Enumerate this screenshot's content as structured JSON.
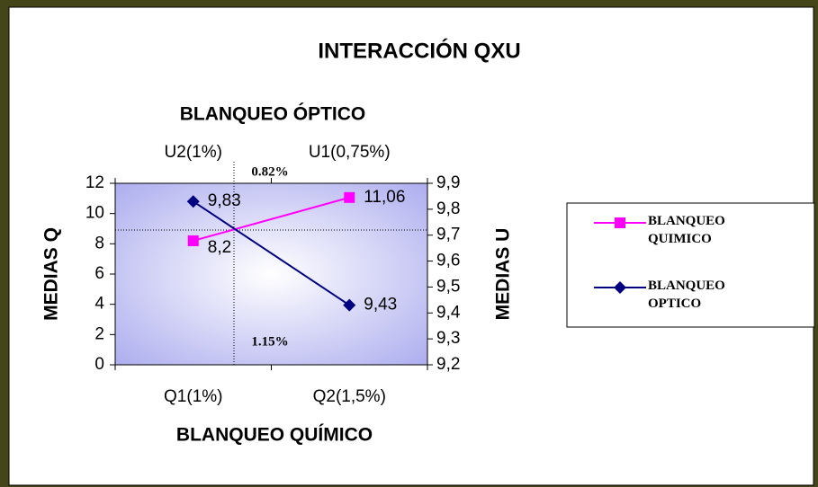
{
  "chart_data": {
    "type": "line",
    "title": "INTERACCIÓN QXU",
    "x_label": "BLANQUEO QUÍMICO",
    "x2_label": "BLANQUEO ÓPTICO",
    "y_label": "MEDIAS Q",
    "y2_label": "MEDIAS U",
    "categories": [
      "Q1(1%)",
      "Q2(1,5%)"
    ],
    "x2_categories": [
      "U2(1%)",
      "U1(0,75%)"
    ],
    "series": [
      {
        "name": "BLANQUEO QUIMICO",
        "color": "#ff00ff",
        "marker": "square",
        "values": [
          8.2,
          11.06
        ],
        "value_labels": [
          "8,2",
          "11,06"
        ]
      },
      {
        "name": "BLANQUEO OPTICO",
        "color": "#000080",
        "marker": "diamond",
        "axis": "y2",
        "values": [
          9.83,
          9.43
        ],
        "value_labels": [
          "9,83",
          "9,43"
        ]
      }
    ],
    "ylim": [
      0,
      12
    ],
    "yticks": [
      0,
      2,
      4,
      6,
      8,
      10,
      12
    ],
    "y2lim": [
      9.2,
      9.9
    ],
    "y2ticks": [
      {
        "value": 9.2,
        "label": "9,2"
      },
      {
        "value": 9.3,
        "label": "9,3"
      },
      {
        "value": 9.4,
        "label": "9,4"
      },
      {
        "value": 9.5,
        "label": "9,5"
      },
      {
        "value": 9.6,
        "label": "9,6"
      },
      {
        "value": 9.7,
        "label": "9,7"
      },
      {
        "value": 9.8,
        "label": "9,8"
      },
      {
        "value": 9.9,
        "label": "9,9"
      }
    ],
    "annotations": [
      "0.82%",
      "1.15%"
    ],
    "legend": "right"
  }
}
